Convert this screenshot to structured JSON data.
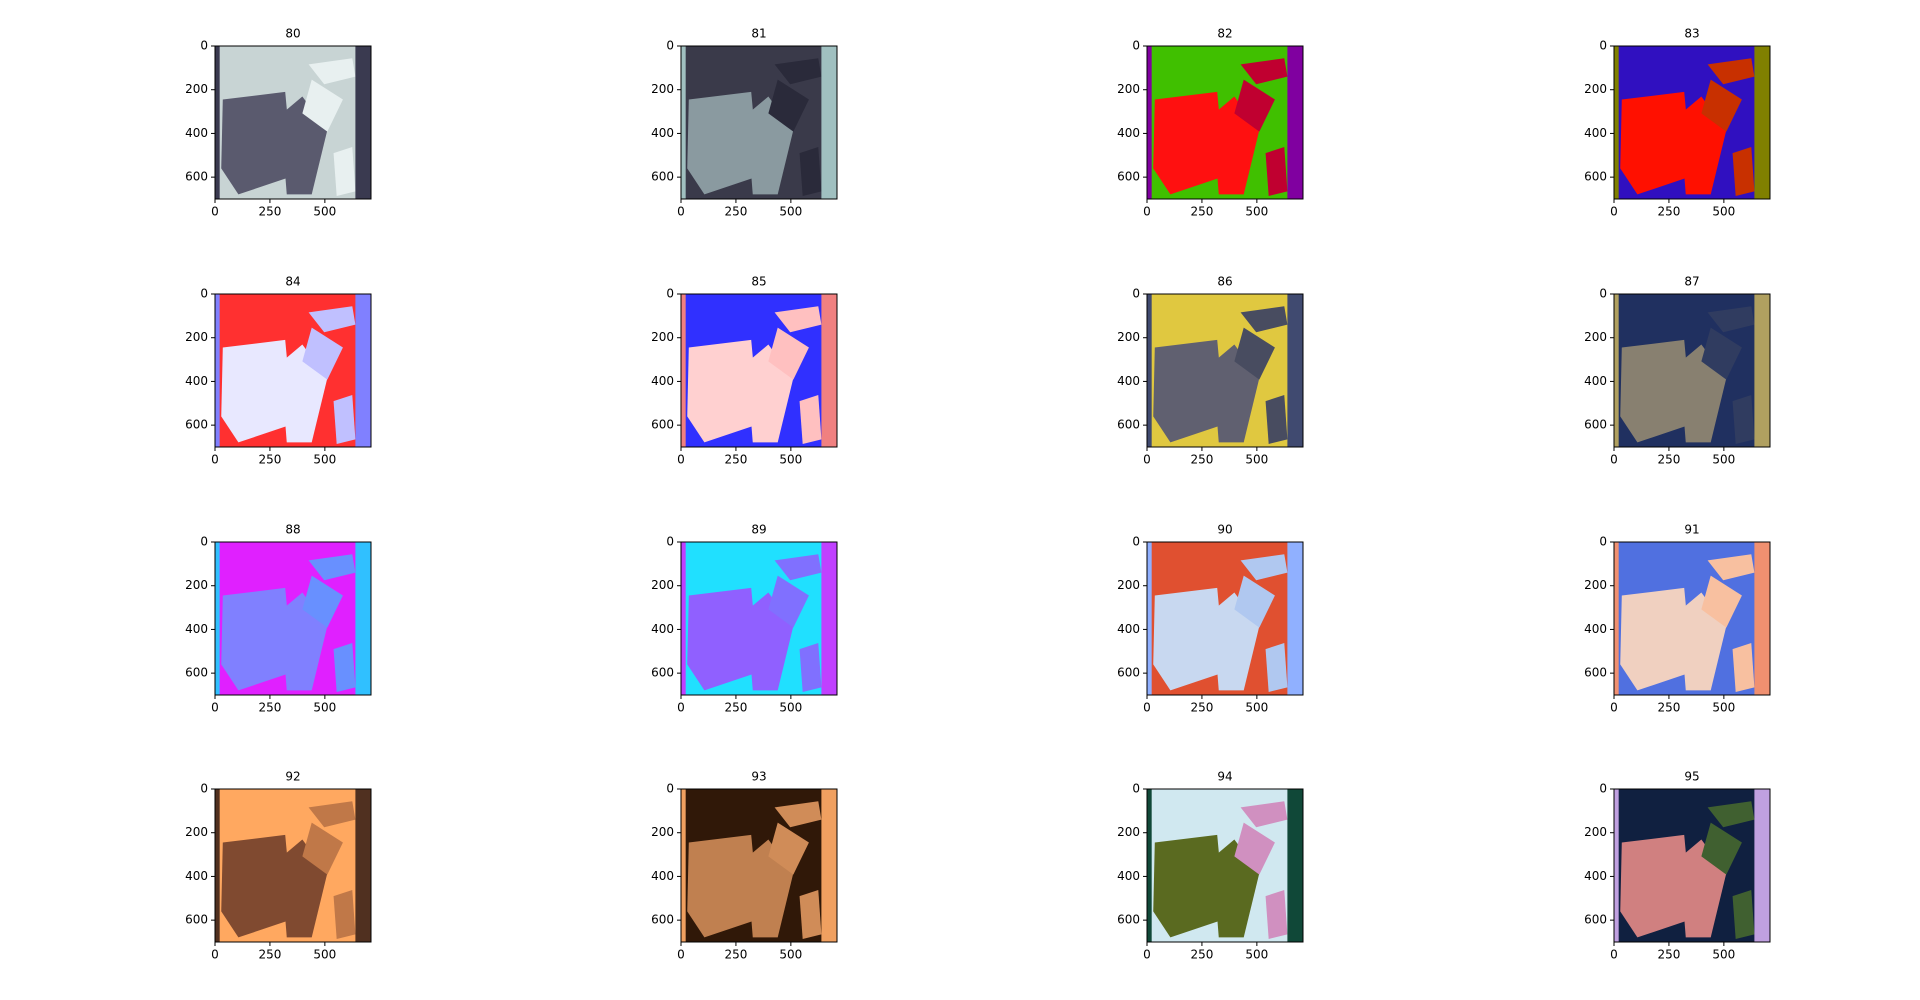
{
  "chart_data": [
    {
      "type": "image",
      "title": "80",
      "colors": [
        "#c8d4d4",
        "#5a5a6e",
        "#e8f0f0",
        "#3a3a50"
      ],
      "xlim": [
        0,
        710
      ],
      "ylim": [
        700,
        0
      ],
      "xticks": [
        0,
        250,
        500
      ],
      "yticks": [
        0,
        200,
        400,
        600
      ]
    },
    {
      "type": "image",
      "title": "81",
      "colors": [
        "#3a3a4a",
        "#8a9aa0",
        "#2a2a3a",
        "#a0c0c0"
      ],
      "xlim": [
        0,
        710
      ],
      "ylim": [
        700,
        0
      ],
      "xticks": [
        0,
        250,
        500
      ],
      "yticks": [
        0,
        200,
        400,
        600
      ]
    },
    {
      "type": "image",
      "title": "82",
      "colors": [
        "#40c000",
        "#ff1010",
        "#c00030",
        "#8000a0"
      ],
      "xlim": [
        0,
        710
      ],
      "ylim": [
        700,
        0
      ],
      "xticks": [
        0,
        250,
        500
      ],
      "yticks": [
        0,
        200,
        400,
        600
      ]
    },
    {
      "type": "image",
      "title": "83",
      "colors": [
        "#3010c0",
        "#ff1000",
        "#c83000",
        "#808000"
      ],
      "xlim": [
        0,
        710
      ],
      "ylim": [
        700,
        0
      ],
      "xticks": [
        0,
        250,
        500
      ],
      "yticks": [
        0,
        200,
        400,
        600
      ]
    },
    {
      "type": "image",
      "title": "84",
      "colors": [
        "#ff3030",
        "#e8e8ff",
        "#c0c0ff",
        "#8080ff"
      ],
      "xlim": [
        0,
        710
      ],
      "ylim": [
        700,
        0
      ],
      "xticks": [
        0,
        250,
        500
      ],
      "yticks": [
        0,
        200,
        400,
        600
      ]
    },
    {
      "type": "image",
      "title": "85",
      "colors": [
        "#3030ff",
        "#ffd0d0",
        "#ffc0c0",
        "#f08080"
      ],
      "xlim": [
        0,
        710
      ],
      "ylim": [
        700,
        0
      ],
      "xticks": [
        0,
        250,
        500
      ],
      "yticks": [
        0,
        200,
        400,
        600
      ]
    },
    {
      "type": "image",
      "title": "86",
      "colors": [
        "#e0c840",
        "#606070",
        "#484c60",
        "#404a70"
      ],
      "xlim": [
        0,
        710
      ],
      "ylim": [
        700,
        0
      ],
      "xticks": [
        0,
        250,
        500
      ],
      "yticks": [
        0,
        200,
        400,
        600
      ]
    },
    {
      "type": "image",
      "title": "87",
      "colors": [
        "#203060",
        "#888070",
        "#303c60",
        "#b0a060"
      ],
      "xlim": [
        0,
        710
      ],
      "ylim": [
        700,
        0
      ],
      "xticks": [
        0,
        250,
        500
      ],
      "yticks": [
        0,
        200,
        400,
        600
      ]
    },
    {
      "type": "image",
      "title": "88",
      "colors": [
        "#e020ff",
        "#8080ff",
        "#6890ff",
        "#30c0ff"
      ],
      "xlim": [
        0,
        710
      ],
      "ylim": [
        700,
        0
      ],
      "xticks": [
        0,
        250,
        500
      ],
      "yticks": [
        0,
        200,
        400,
        600
      ]
    },
    {
      "type": "image",
      "title": "89",
      "colors": [
        "#20e0ff",
        "#9060ff",
        "#8070ff",
        "#c040ff"
      ],
      "xlim": [
        0,
        710
      ],
      "ylim": [
        700,
        0
      ],
      "xticks": [
        0,
        250,
        500
      ],
      "yticks": [
        0,
        200,
        400,
        600
      ]
    },
    {
      "type": "image",
      "title": "90",
      "colors": [
        "#e05030",
        "#c8d8f0",
        "#b0c8f0",
        "#90b0ff"
      ],
      "xlim": [
        0,
        710
      ],
      "ylim": [
        700,
        0
      ],
      "xticks": [
        0,
        250,
        500
      ],
      "yticks": [
        0,
        200,
        400,
        600
      ]
    },
    {
      "type": "image",
      "title": "91",
      "colors": [
        "#5070e0",
        "#f0d0c0",
        "#f8c0a0",
        "#f09070"
      ],
      "xlim": [
        0,
        710
      ],
      "ylim": [
        700,
        0
      ],
      "xticks": [
        0,
        250,
        500
      ],
      "yticks": [
        0,
        200,
        400,
        600
      ]
    },
    {
      "type": "image",
      "title": "92",
      "colors": [
        "#ffa860",
        "#804a30",
        "#c07848",
        "#503020"
      ],
      "xlim": [
        0,
        710
      ],
      "ylim": [
        700,
        0
      ],
      "xticks": [
        0,
        250,
        500
      ],
      "yticks": [
        0,
        200,
        400,
        600
      ]
    },
    {
      "type": "image",
      "title": "93",
      "colors": [
        "#301808",
        "#c08050",
        "#d08c58",
        "#f0a060"
      ],
      "xlim": [
        0,
        710
      ],
      "ylim": [
        700,
        0
      ],
      "xticks": [
        0,
        250,
        500
      ],
      "yticks": [
        0,
        200,
        400,
        600
      ]
    },
    {
      "type": "image",
      "title": "94",
      "colors": [
        "#d0e8f0",
        "#5a6a20",
        "#d090c0",
        "#104838"
      ],
      "xlim": [
        0,
        710
      ],
      "ylim": [
        700,
        0
      ],
      "xticks": [
        0,
        250,
        500
      ],
      "yticks": [
        0,
        200,
        400,
        600
      ]
    },
    {
      "type": "image",
      "title": "95",
      "colors": [
        "#102040",
        "#d08080",
        "#406030",
        "#c0a0e0"
      ],
      "xlim": [
        0,
        710
      ],
      "ylim": [
        700,
        0
      ],
      "xticks": [
        0,
        250,
        500
      ],
      "yticks": [
        0,
        200,
        400,
        600
      ]
    }
  ]
}
